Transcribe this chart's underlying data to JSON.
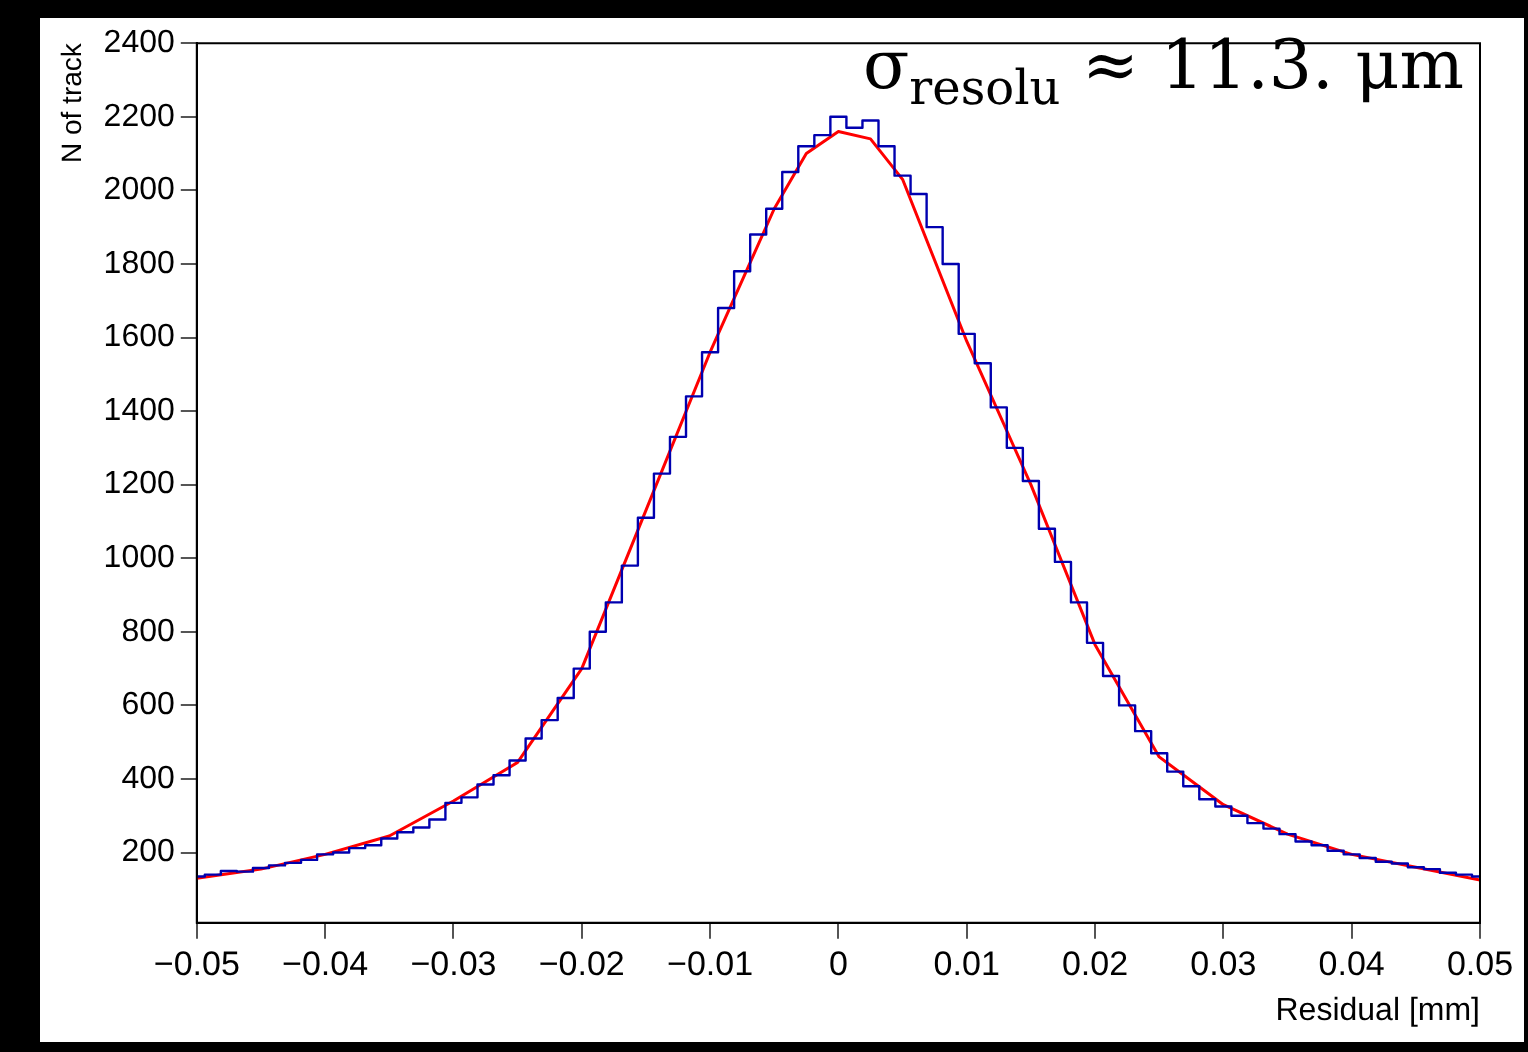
{
  "chart_data": {
    "type": "line",
    "xlabel": "Residual [mm]",
    "ylabel": "N of track",
    "annotations": [
      "σ$_{resolu}$ ≈ 11.3. μm"
    ],
    "xlim": [
      -0.05,
      0.05
    ],
    "xticks": [
      {
        "value": -0.05,
        "label": "−0.05"
      },
      {
        "value": -0.04,
        "label": "−0.04"
      },
      {
        "value": -0.03,
        "label": "−0.03"
      },
      {
        "value": -0.02,
        "label": "−0.02"
      },
      {
        "value": -0.01,
        "label": "−0.01"
      },
      0,
      0.01,
      0.02,
      0.03,
      0.04,
      0.05
    ],
    "ylim": [
      9,
      2400
    ],
    "yticks": [
      200,
      400,
      600,
      800,
      1000,
      1200,
      1400,
      1600,
      1800,
      2000,
      2200,
      2400
    ],
    "grid": false,
    "legend": false,
    "marker": "none",
    "series": [
      {
        "type": "step",
        "color": "#0000b0",
        "x": [
          -0.05,
          -0.04875,
          -0.0475,
          -0.04625,
          -0.045,
          -0.04375,
          -0.0425,
          -0.04125,
          -0.04,
          -0.03875,
          -0.0375,
          -0.03625,
          -0.035,
          -0.03375,
          -0.0325,
          -0.03125,
          -0.03,
          -0.02875,
          -0.0275,
          -0.02625,
          -0.025,
          -0.02375,
          -0.0225,
          -0.02125,
          -0.02,
          -0.01875,
          -0.0175,
          -0.01625,
          -0.015,
          -0.01375,
          -0.0125,
          -0.01125,
          -0.01,
          -0.00875,
          -0.0075,
          -0.00625,
          -0.005,
          -0.00375,
          -0.0025,
          -0.00125,
          0,
          0.00125,
          0.0025,
          0.00375,
          0.005,
          0.00625,
          0.0075,
          0.00875,
          0.01,
          0.01125,
          0.0125,
          0.01375,
          0.015,
          0.01625,
          0.0175,
          0.01875,
          0.02,
          0.02125,
          0.0225,
          0.02375,
          0.025,
          0.02625,
          0.0275,
          0.02875,
          0.03,
          0.03125,
          0.0325,
          0.03375,
          0.035,
          0.03625,
          0.0375,
          0.03875,
          0.04,
          0.04125,
          0.0425,
          0.04375,
          0.045,
          0.04625,
          0.0475,
          0.04875,
          0.05
        ],
        "values": [
          135,
          140,
          150,
          148,
          158,
          165,
          172,
          180,
          195,
          200,
          212,
          220,
          238,
          255,
          268,
          290,
          335,
          350,
          385,
          410,
          450,
          510,
          560,
          620,
          700,
          800,
          880,
          980,
          1110,
          1230,
          1330,
          1440,
          1560,
          1680,
          1780,
          1880,
          1950,
          2050,
          2120,
          2150,
          2200,
          2170,
          2190,
          2120,
          2040,
          1990,
          1900,
          1800,
          1610,
          1530,
          1410,
          1300,
          1210,
          1080,
          990,
          880,
          770,
          680,
          600,
          530,
          470,
          420,
          380,
          345,
          325,
          300,
          280,
          265,
          250,
          230,
          220,
          205,
          195,
          185,
          175,
          170,
          160,
          155,
          145,
          140,
          135
        ]
      },
      {
        "type": "line",
        "color": "#ff0000",
        "x": [
          -0.05,
          -0.045,
          -0.04,
          -0.035,
          -0.03,
          -0.025,
          -0.02,
          -0.015,
          -0.01,
          -0.005,
          -0.0025,
          0,
          0.0025,
          0.005,
          0.01,
          0.015,
          0.02,
          0.025,
          0.03,
          0.035,
          0.04,
          0.045,
          0.05
        ],
        "values": [
          130,
          155,
          195,
          245,
          340,
          445,
          700,
          1130,
          1560,
          1950,
          2100,
          2160,
          2140,
          2030,
          1590,
          1200,
          765,
          460,
          330,
          250,
          195,
          160,
          125
        ]
      }
    ]
  }
}
